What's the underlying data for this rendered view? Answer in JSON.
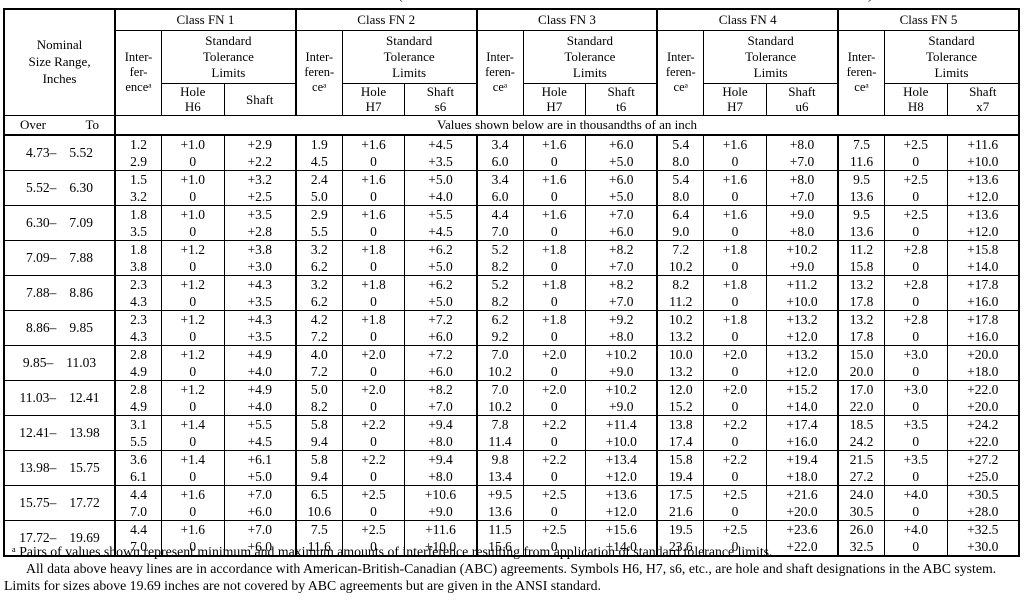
{
  "page": {
    "top_fragments": {
      "left": "(",
      "right": ")"
    }
  },
  "table": {
    "nominal_header": "Nominal\nSize Range,\nInches",
    "over_label": "Over",
    "to_label": "To",
    "units_note": "Values shown below are in thousandths of an inch",
    "class_groups": [
      {
        "name": "Class FN 1",
        "interference": "Inter-\nfer-\nenceᵃ",
        "tolerance": "Standard\nTolerance\nLimits",
        "hole": "Hole\nH6",
        "shaft": "Shaft"
      },
      {
        "name": "Class FN 2",
        "interference": "Inter-\nferen-\nceᵃ",
        "tolerance": "Standard\nTolerance\nLimits",
        "hole": "Hole\nH7",
        "shaft": "Shaft\ns6"
      },
      {
        "name": "Class FN 3",
        "interference": "Inter-\nferen-\nceᵃ",
        "tolerance": "Standard\nTolerance\nLimits",
        "hole": "Hole\nH7",
        "shaft": "Shaft\nt6"
      },
      {
        "name": "Class FN 4",
        "interference": "Inter-\nferen-\nceᵃ",
        "tolerance": "Standard\nTolerance\nLimits",
        "hole": "Hole\nH7",
        "shaft": "Shaft\nu6"
      },
      {
        "name": "Class FN 5",
        "interference": "Inter-\nferen-\nceᵃ",
        "tolerance": "Standard\nTolerance\nLimits",
        "hole": "Hole\nH8",
        "shaft": "Shaft\nx7"
      }
    ],
    "rows": [
      {
        "over": "4.73–",
        "to": "5.52",
        "cells": [
          [
            "1.2",
            "2.9"
          ],
          [
            "+1.0",
            "0"
          ],
          [
            "+2.9",
            "+2.2"
          ],
          [
            "1.9",
            "4.5"
          ],
          [
            "+1.6",
            "0"
          ],
          [
            "+4.5",
            "+3.5"
          ],
          [
            "3.4",
            "6.0"
          ],
          [
            "+1.6",
            "0"
          ],
          [
            "+6.0",
            "+5.0"
          ],
          [
            "5.4",
            "8.0"
          ],
          [
            "+1.6",
            "0"
          ],
          [
            "+8.0",
            "+7.0"
          ],
          [
            "7.5",
            "11.6"
          ],
          [
            "+2.5",
            "0"
          ],
          [
            "+11.6",
            "+10.0"
          ]
        ]
      },
      {
        "over": "5.52–",
        "to": "6.30",
        "cells": [
          [
            "1.5",
            "3.2"
          ],
          [
            "+1.0",
            "0"
          ],
          [
            "+3.2",
            "+2.5"
          ],
          [
            "2.4",
            "5.0"
          ],
          [
            "+1.6",
            "0"
          ],
          [
            "+5.0",
            "+4.0"
          ],
          [
            "3.4",
            "6.0"
          ],
          [
            "+1.6",
            "0"
          ],
          [
            "+6.0",
            "+5.0"
          ],
          [
            "5.4",
            "8.0"
          ],
          [
            "+1.6",
            "0"
          ],
          [
            "+8.0",
            "+7.0"
          ],
          [
            "9.5",
            "13.6"
          ],
          [
            "+2.5",
            "0"
          ],
          [
            "+13.6",
            "+12.0"
          ]
        ]
      },
      {
        "over": "6.30–",
        "to": "7.09",
        "cells": [
          [
            "1.8",
            "3.5"
          ],
          [
            "+1.0",
            "0"
          ],
          [
            "+3.5",
            "+2.8"
          ],
          [
            "2.9",
            "5.5"
          ],
          [
            "+1.6",
            "0"
          ],
          [
            "+5.5",
            "+4.5"
          ],
          [
            "4.4",
            "7.0"
          ],
          [
            "+1.6",
            "0"
          ],
          [
            "+7.0",
            "+6.0"
          ],
          [
            "6.4",
            "9.0"
          ],
          [
            "+1.6",
            "0"
          ],
          [
            "+9.0",
            "+8.0"
          ],
          [
            "9.5",
            "13.6"
          ],
          [
            "+2.5",
            "0"
          ],
          [
            "+13.6",
            "+12.0"
          ]
        ]
      },
      {
        "over": "7.09–",
        "to": "7.88",
        "cells": [
          [
            "1.8",
            "3.8"
          ],
          [
            "+1.2",
            "0"
          ],
          [
            "+3.8",
            "+3.0"
          ],
          [
            "3.2",
            "6.2"
          ],
          [
            "+1.8",
            "0"
          ],
          [
            "+6.2",
            "+5.0"
          ],
          [
            "5.2",
            "8.2"
          ],
          [
            "+1.8",
            "0"
          ],
          [
            "+8.2",
            "+7.0"
          ],
          [
            "7.2",
            "10.2"
          ],
          [
            "+1.8",
            "0"
          ],
          [
            "+10.2",
            "+9.0"
          ],
          [
            "11.2",
            "15.8"
          ],
          [
            "+2.8",
            "0"
          ],
          [
            "+15.8",
            "+14.0"
          ]
        ]
      },
      {
        "over": "7.88–",
        "to": "8.86",
        "cells": [
          [
            "2.3",
            "4.3"
          ],
          [
            "+1.2",
            "0"
          ],
          [
            "+4.3",
            "+3.5"
          ],
          [
            "3.2",
            "6.2"
          ],
          [
            "+1.8",
            "0"
          ],
          [
            "+6.2",
            "+5.0"
          ],
          [
            "5.2",
            "8.2"
          ],
          [
            "+1.8",
            "0"
          ],
          [
            "+8.2",
            "+7.0"
          ],
          [
            "8.2",
            "11.2"
          ],
          [
            "+1.8",
            "0"
          ],
          [
            "+11.2",
            "+10.0"
          ],
          [
            "13.2",
            "17.8"
          ],
          [
            "+2.8",
            "0"
          ],
          [
            "+17.8",
            "+16.0"
          ]
        ]
      },
      {
        "over": "8.86–",
        "to": "9.85",
        "cells": [
          [
            "2.3",
            "4.3"
          ],
          [
            "+1.2",
            "0"
          ],
          [
            "+4.3",
            "+3.5"
          ],
          [
            "4.2",
            "7.2"
          ],
          [
            "+1.8",
            "0"
          ],
          [
            "+7.2",
            "+6.0"
          ],
          [
            "6.2",
            "9.2"
          ],
          [
            "+1.8",
            "0"
          ],
          [
            "+9.2",
            "+8.0"
          ],
          [
            "10.2",
            "13.2"
          ],
          [
            "+1.8",
            "0"
          ],
          [
            "+13.2",
            "+12.0"
          ],
          [
            "13.2",
            "17.8"
          ],
          [
            "+2.8",
            "0"
          ],
          [
            "+17.8",
            "+16.0"
          ]
        ]
      },
      {
        "over": "9.85–",
        "to": "11.03",
        "cells": [
          [
            "2.8",
            "4.9"
          ],
          [
            "+1.2",
            "0"
          ],
          [
            "+4.9",
            "+4.0"
          ],
          [
            "4.0",
            "7.2"
          ],
          [
            "+2.0",
            "0"
          ],
          [
            "+7.2",
            "+6.0"
          ],
          [
            "7.0",
            "10.2"
          ],
          [
            "+2.0",
            "0"
          ],
          [
            "+10.2",
            "+9.0"
          ],
          [
            "10.0",
            "13.2"
          ],
          [
            "+2.0",
            "0"
          ],
          [
            "+13.2",
            "+12.0"
          ],
          [
            "15.0",
            "20.0"
          ],
          [
            "+3.0",
            "0"
          ],
          [
            "+20.0",
            "+18.0"
          ]
        ]
      },
      {
        "over": "11.03–",
        "to": "12.41",
        "cells": [
          [
            "2.8",
            "4.9"
          ],
          [
            "+1.2",
            "0"
          ],
          [
            "+4.9",
            "+4.0"
          ],
          [
            "5.0",
            "8.2"
          ],
          [
            "+2.0",
            "0"
          ],
          [
            "+8.2",
            "+7.0"
          ],
          [
            "7.0",
            "10.2"
          ],
          [
            "+2.0",
            "0"
          ],
          [
            "+10.2",
            "+9.0"
          ],
          [
            "12.0",
            "15.2"
          ],
          [
            "+2.0",
            "0"
          ],
          [
            "+15.2",
            "+14.0"
          ],
          [
            "17.0",
            "22.0"
          ],
          [
            "+3.0",
            "0"
          ],
          [
            "+22.0",
            "+20.0"
          ]
        ]
      },
      {
        "over": "12.41–",
        "to": "13.98",
        "cells": [
          [
            "3.1",
            "5.5"
          ],
          [
            "+1.4",
            "0"
          ],
          [
            "+5.5",
            "+4.5"
          ],
          [
            "5.8",
            "9.4"
          ],
          [
            "+2.2",
            "0"
          ],
          [
            "+9.4",
            "+8.0"
          ],
          [
            "7.8",
            "11.4"
          ],
          [
            "+2.2",
            "0"
          ],
          [
            "+11.4",
            "+10.0"
          ],
          [
            "13.8",
            "17.4"
          ],
          [
            "+2.2",
            "0"
          ],
          [
            "+17.4",
            "+16.0"
          ],
          [
            "18.5",
            "24.2"
          ],
          [
            "+3.5",
            "0"
          ],
          [
            "+24.2",
            "+22.0"
          ]
        ]
      },
      {
        "over": "13.98–",
        "to": "15.75",
        "cells": [
          [
            "3.6",
            "6.1"
          ],
          [
            "+1.4",
            "0"
          ],
          [
            "+6.1",
            "+5.0"
          ],
          [
            "5.8",
            "9.4"
          ],
          [
            "+2.2",
            "0"
          ],
          [
            "+9.4",
            "+8.0"
          ],
          [
            "9.8",
            "13.4"
          ],
          [
            "+2.2",
            "0"
          ],
          [
            "+13.4",
            "+12.0"
          ],
          [
            "15.8",
            "19.4"
          ],
          [
            "+2.2",
            "0"
          ],
          [
            "+19.4",
            "+18.0"
          ],
          [
            "21.5",
            "27.2"
          ],
          [
            "+3.5",
            "0"
          ],
          [
            "+27.2",
            "+25.0"
          ]
        ]
      },
      {
        "over": "15.75–",
        "to": "17.72",
        "cells": [
          [
            "4.4",
            "7.0"
          ],
          [
            "+1.6",
            "0"
          ],
          [
            "+7.0",
            "+6.0"
          ],
          [
            "6.5",
            "10.6"
          ],
          [
            "+2.5",
            "0"
          ],
          [
            "+10.6",
            "+9.0"
          ],
          [
            "+9.5",
            "13.6"
          ],
          [
            "+2.5",
            "0"
          ],
          [
            "+13.6",
            "+12.0"
          ],
          [
            "17.5",
            "21.6"
          ],
          [
            "+2.5",
            "0"
          ],
          [
            "+21.6",
            "+20.0"
          ],
          [
            "24.0",
            "30.5"
          ],
          [
            "+4.0",
            "0"
          ],
          [
            "+30.5",
            "+28.0"
          ]
        ]
      },
      {
        "over": "17.72–",
        "to": "19.69",
        "cells": [
          [
            "4.4",
            "7.0"
          ],
          [
            "+1.6",
            "0"
          ],
          [
            "+7.0",
            "+6.0"
          ],
          [
            "7.5",
            "11.6"
          ],
          [
            "+2.5",
            "0"
          ],
          [
            "+11.6",
            "+10.0"
          ],
          [
            "11.5",
            "15.6"
          ],
          [
            "+2.5",
            "0"
          ],
          [
            "+15.6",
            "+14.0"
          ],
          [
            "19.5",
            "23.6"
          ],
          [
            "+2.5",
            "0"
          ],
          [
            "+23.6",
            "+22.0"
          ],
          [
            "26.0",
            "32.5"
          ],
          [
            "+4.0",
            "0"
          ],
          [
            "+32.5",
            "+30.0"
          ]
        ]
      }
    ]
  },
  "footnotes": {
    "note_a": "ᵃ Pairs of values shown represent minimum and maximum amounts of interference resulting from application of standard tolerance limits.",
    "note_b": "All data above heavy lines are in accordance with American-British-Canadian (ABC) agreements. Symbols H6, H7, s6, etc., are hole and shaft designations in the ABC system. Limits for sizes above 19.69 inches are not covered by ABC agreements but are given in the ANSI standard."
  }
}
